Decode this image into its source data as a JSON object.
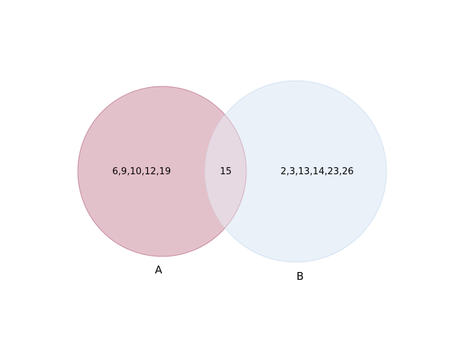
{
  "chart_data": {
    "type": "venn",
    "sets": [
      {
        "name": "A",
        "elements": "6,9,10,12,19",
        "color": "#c06c84"
      },
      {
        "name": "B",
        "elements": "2,3,13,14,23,26",
        "color": "#c8daf0"
      }
    ],
    "intersection": {
      "elements": "15"
    }
  },
  "colors": {
    "set_a_fill": "#e3c1cb",
    "set_a_stroke": "#c98fa2",
    "set_b_fill": "#eaf1f9",
    "set_b_stroke": "#d3e1f0",
    "overlap_fill": "#e6d9e2"
  }
}
